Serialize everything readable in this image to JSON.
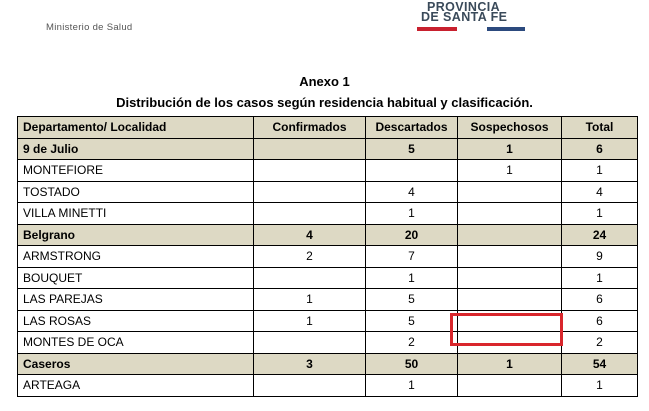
{
  "header": {
    "ministry": "Ministerio de Salud",
    "logo_line1": "PROVINCIA",
    "logo_line2": "DE SANTA FE",
    "logo_colors": {
      "red": "#c8202e",
      "blue": "#2c4a7e",
      "text": "#3a4a5a"
    }
  },
  "annex": {
    "title": "Anexo 1",
    "subtitle": "Distribución de los casos según residencia habitual y clasificación."
  },
  "table": {
    "header_color": "#ddd9c4",
    "columns": [
      "Departamento/ Localidad",
      "Confirmados",
      "Descartados",
      "Sospechosos",
      "Total"
    ],
    "rows": [
      {
        "type": "group",
        "cells": [
          "9 de Julio",
          "",
          "5",
          "1",
          "6"
        ]
      },
      {
        "type": "item",
        "cells": [
          "MONTEFIORE",
          "",
          "",
          "1",
          "1"
        ]
      },
      {
        "type": "item",
        "cells": [
          "TOSTADO",
          "",
          "4",
          "",
          "4"
        ]
      },
      {
        "type": "item",
        "cells": [
          "VILLA MINETTI",
          "",
          "1",
          "",
          "1"
        ]
      },
      {
        "type": "group",
        "cells": [
          "Belgrano",
          "4",
          "20",
          "",
          "24"
        ]
      },
      {
        "type": "item",
        "cells": [
          "ARMSTRONG",
          "2",
          "7",
          "",
          "9"
        ]
      },
      {
        "type": "item",
        "cells": [
          "BOUQUET",
          "",
          "1",
          "",
          "1"
        ]
      },
      {
        "type": "item",
        "cells": [
          "LAS PAREJAS",
          "1",
          "5",
          "",
          "6"
        ]
      },
      {
        "type": "item",
        "cells": [
          "LAS ROSAS",
          "1",
          "5",
          "",
          "6"
        ]
      },
      {
        "type": "item",
        "cells": [
          "MONTES DE OCA",
          "",
          "2",
          "",
          "2"
        ]
      },
      {
        "type": "group",
        "cells": [
          "Caseros",
          "3",
          "50",
          "1",
          "54"
        ]
      },
      {
        "type": "item",
        "cells": [
          "ARTEAGA",
          "",
          "1",
          "",
          "1"
        ]
      }
    ]
  },
  "highlight_color": "#d9262c"
}
